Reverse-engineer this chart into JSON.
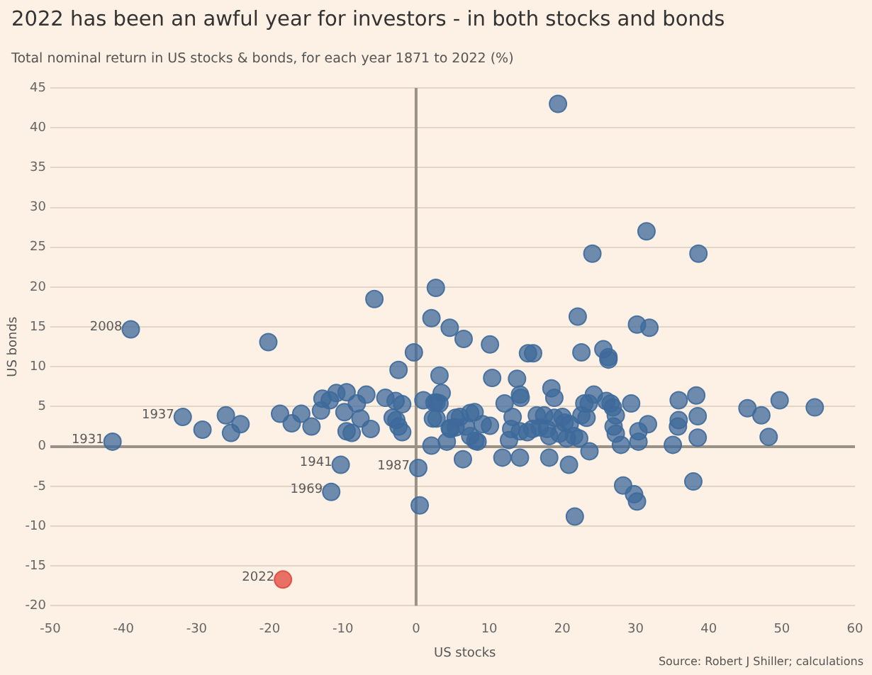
{
  "chart_data": {
    "type": "scatter",
    "title": "2022 has been an awful year for investors - in both stocks and bonds",
    "subtitle": "Total nominal return in US stocks & bonds, for each year 1871 to 2022 (%)",
    "xlabel": "US stocks",
    "ylabel": "US bonds",
    "xlim": [
      -50,
      60
    ],
    "xticks": [
      -50,
      -40,
      -30,
      -20,
      -10,
      0,
      10,
      20,
      30,
      40,
      50,
      60
    ],
    "ylim": [
      -20,
      45
    ],
    "yticks": [
      -20,
      -15,
      -10,
      -5,
      0,
      5,
      10,
      15,
      20,
      25,
      30,
      35,
      40,
      45
    ],
    "grid": "y",
    "legend": false,
    "marker": "circle",
    "ref_lines": [
      {
        "axis": "x",
        "value": 0,
        "color": "#9a9187"
      }
    ],
    "series": [
      {
        "color": "#3d6a9b",
        "x": [
          -39,
          -41.5,
          -31.9,
          -10.3,
          -11.6,
          0.3,
          -5.7,
          -20.2,
          2.7,
          2.1,
          4.6,
          -0.3,
          19.4,
          31.5,
          24.1,
          38.6,
          6.5,
          10.1,
          22.1,
          30.2,
          31.9,
          15.3,
          16.0,
          22.6,
          25.6,
          26.3,
          -2.4,
          3.2,
          3.5,
          1.0,
          2.5,
          2.3,
          2.1,
          4.6,
          4.2,
          0.5,
          -18.6,
          -17.0,
          -15.7,
          -14.3,
          -13.0,
          -12.8,
          -11.8,
          -10.9,
          -9.5,
          -8.1,
          -9.8,
          -7.6,
          -9.5,
          -8.8,
          -6.8,
          -6.2,
          -4.2,
          -2.8,
          -1.9,
          -3.2,
          -2.7,
          -2.4,
          -1.9,
          -26.0,
          -24.0,
          -25.3,
          -29.2,
          2.8,
          3.2,
          2.8,
          6.4,
          10.4,
          13.8,
          14.2,
          14.3,
          12.1,
          5.4,
          6.0,
          7.4,
          8.0,
          4.7,
          5.4,
          6.8,
          7.4,
          8.1,
          8.4,
          9.1,
          10.1,
          13.2,
          13.0,
          14.2,
          15.2,
          12.7,
          11.8,
          14.2,
          16.5,
          17.5,
          15.9,
          16.9,
          17.9,
          18.2,
          18.9,
          20.0,
          20.3,
          21.0,
          19.6,
          20.6,
          21.6,
          22.3,
          18.5,
          18.9,
          18.2,
          20.9,
          21.7,
          26.3,
          22.6,
          23.3,
          23.0,
          23.6,
          24.3,
          23.7,
          26.0,
          26.6,
          26.9,
          27.3,
          27.0,
          27.3,
          29.4,
          28.0,
          30.4,
          31.7,
          30.4,
          28.3,
          29.8,
          30.2,
          35.1,
          35.8,
          35.9,
          35.9,
          38.3,
          38.5,
          38.5,
          37.9,
          45.3,
          47.2,
          48.2,
          49.7,
          54.5
        ],
        "values": [
          14.7,
          0.6,
          3.7,
          -2.3,
          -5.7,
          -2.7,
          18.5,
          13.1,
          19.9,
          16.1,
          14.9,
          11.8,
          43.0,
          27.0,
          24.2,
          24.2,
          13.5,
          12.8,
          16.3,
          15.3,
          14.9,
          11.7,
          11.7,
          11.8,
          12.2,
          11.2,
          9.6,
          8.9,
          6.7,
          5.8,
          5.5,
          3.5,
          0.1,
          2.3,
          0.6,
          -7.4,
          4.1,
          2.9,
          4.1,
          2.5,
          4.5,
          6.0,
          5.8,
          6.7,
          6.8,
          5.4,
          4.3,
          3.5,
          1.9,
          1.7,
          6.5,
          2.2,
          6.1,
          5.7,
          5.3,
          3.6,
          3.3,
          2.5,
          1.8,
          3.9,
          2.8,
          1.7,
          2.1,
          5.5,
          5.4,
          3.5,
          -1.6,
          8.6,
          8.5,
          6.5,
          6.1,
          5.4,
          3.6,
          3.7,
          4.2,
          4.3,
          2.2,
          2.4,
          2.5,
          1.3,
          0.7,
          0.6,
          2.8,
          2.6,
          3.7,
          2.2,
          1.9,
          1.8,
          0.8,
          -1.4,
          -1.4,
          3.9,
          3.9,
          2.2,
          2.4,
          2.2,
          1.3,
          3.6,
          3.7,
          3.0,
          2.8,
          1.6,
          1.0,
          1.3,
          1.0,
          7.3,
          6.1,
          -1.4,
          -2.3,
          -8.8,
          10.9,
          3.9,
          3.6,
          5.4,
          5.4,
          6.5,
          -0.6,
          5.7,
          5.4,
          4.9,
          3.9,
          2.5,
          1.6,
          5.4,
          0.2,
          1.9,
          2.8,
          0.6,
          -4.9,
          -6.0,
          -6.9,
          0.2,
          2.5,
          3.3,
          5.8,
          6.4,
          3.8,
          1.1,
          -4.4,
          4.8,
          3.9,
          1.2,
          5.8,
          4.9
        ]
      },
      {
        "color": "#e0473c",
        "x": [
          -18.2
        ],
        "values": [
          -16.7
        ]
      }
    ],
    "annotations": [
      {
        "text": "2008",
        "x": -39,
        "y": 14.7
      },
      {
        "text": "1931",
        "x": -41.5,
        "y": 0.6
      },
      {
        "text": "1937",
        "x": -31.9,
        "y": 3.7
      },
      {
        "text": "1941",
        "x": -10.3,
        "y": -2.3
      },
      {
        "text": "1969",
        "x": -11.6,
        "y": -5.7
      },
      {
        "text": "1987",
        "x": 0.3,
        "y": -2.7
      },
      {
        "text": "2022",
        "x": -18.2,
        "y": -16.7
      },
      "Source: Robert J Shiller; calculations"
    ]
  }
}
